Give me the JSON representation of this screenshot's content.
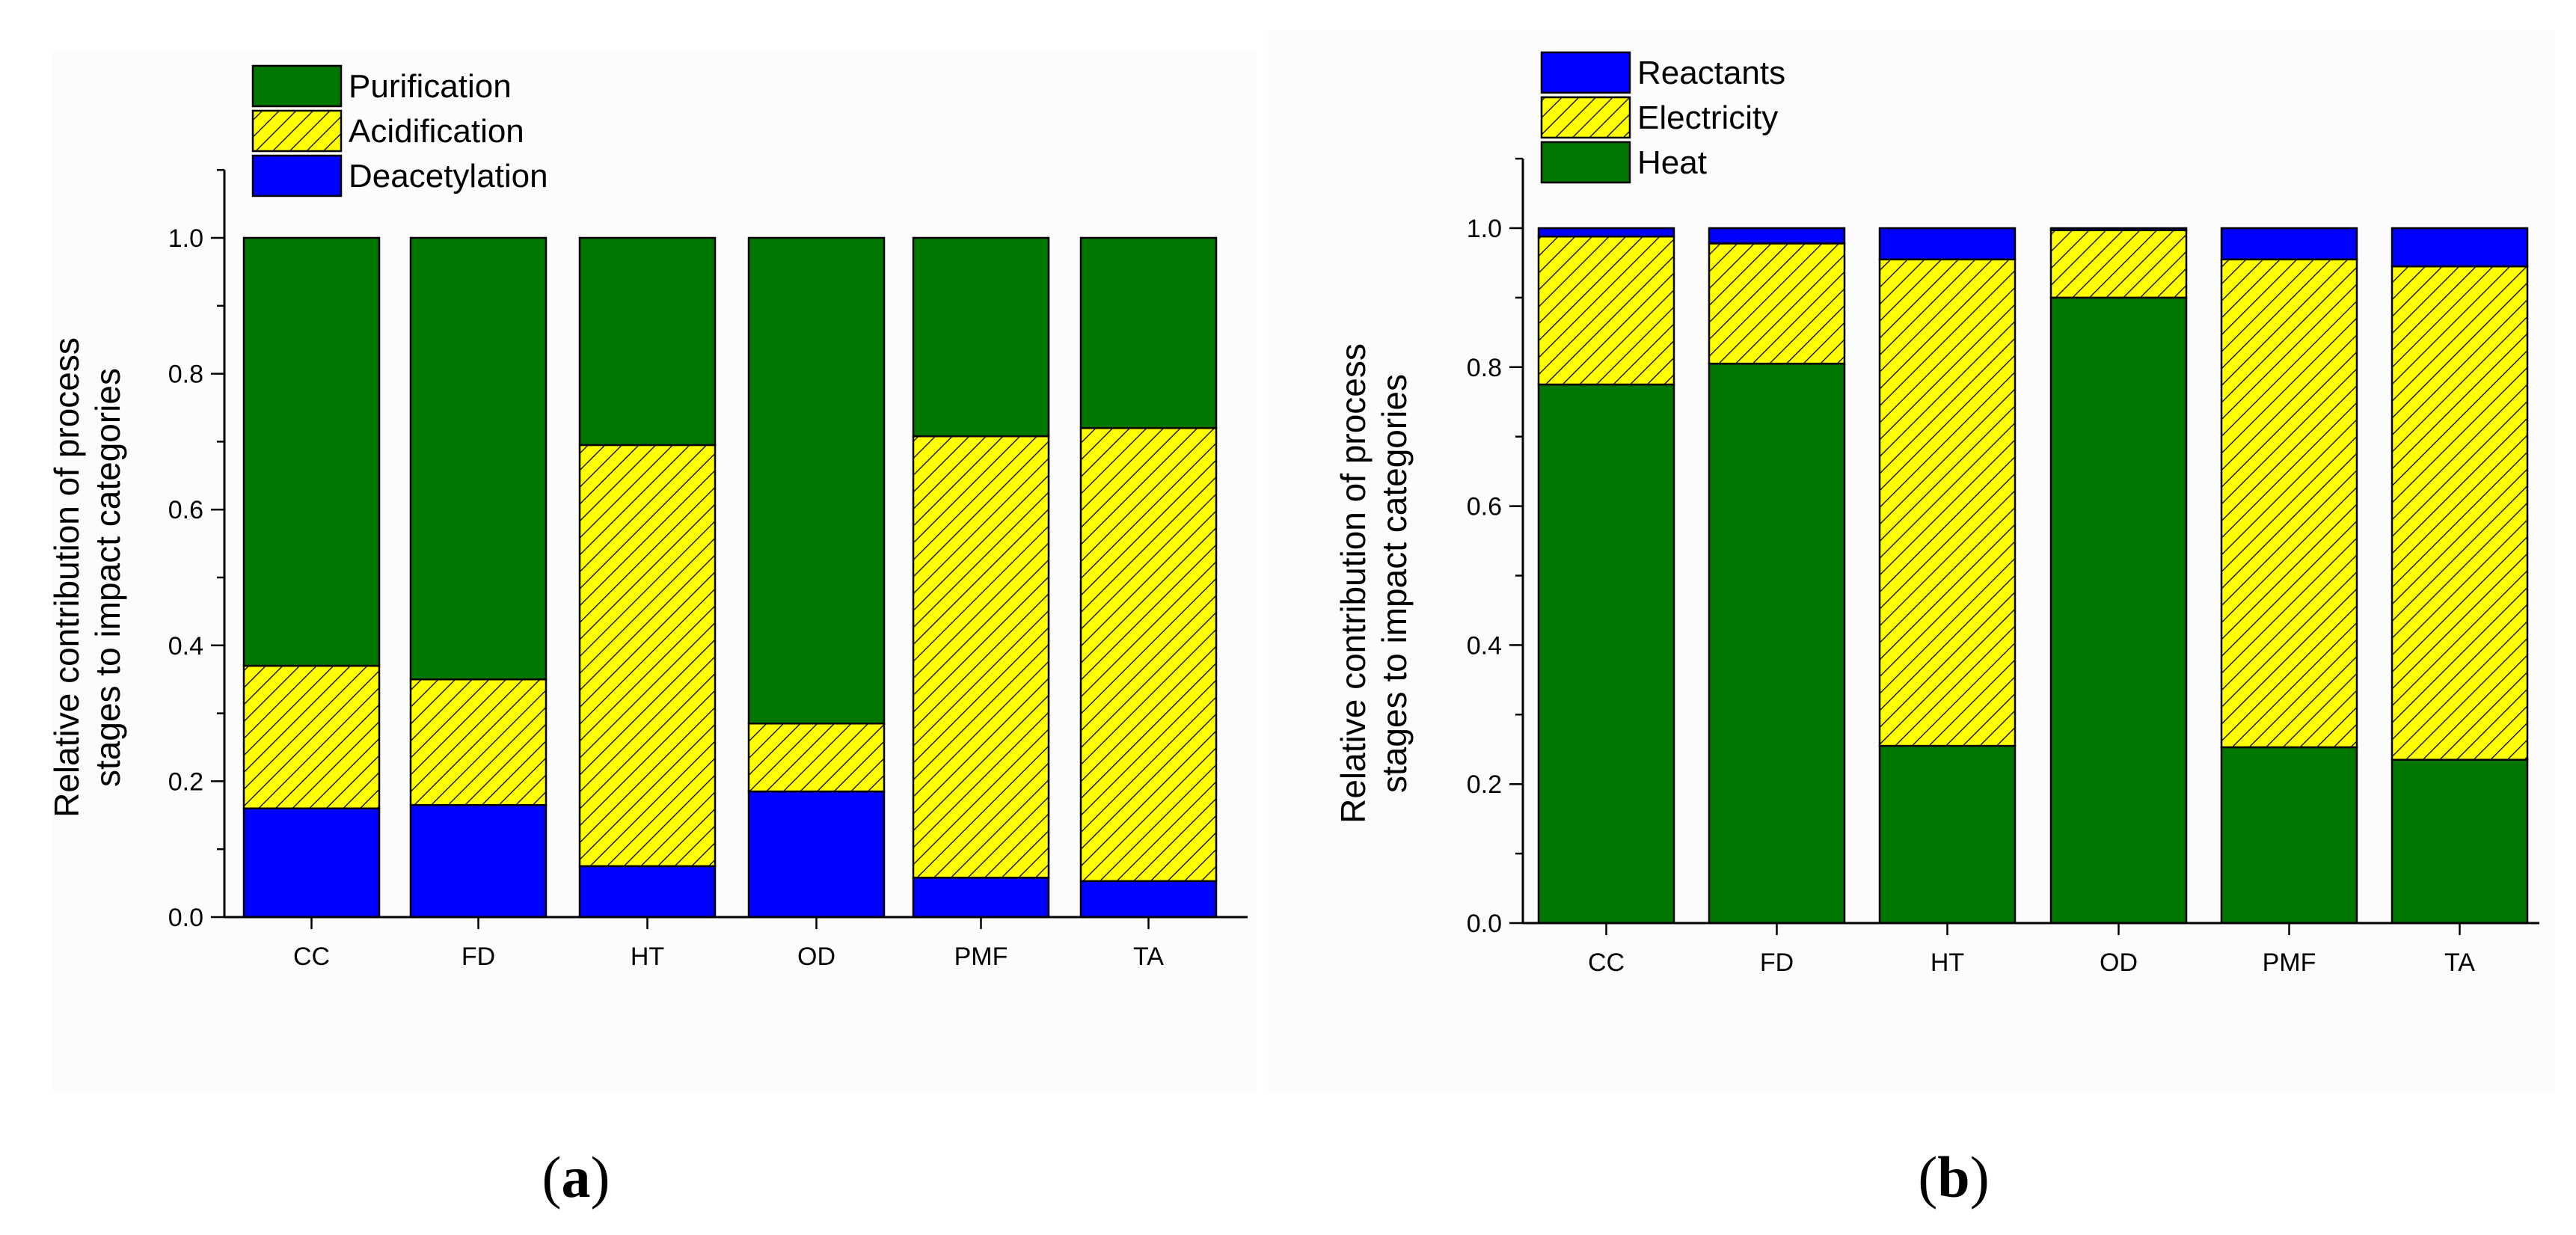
{
  "chart_data": [
    {
      "id": "a",
      "type": "bar",
      "stacked": true,
      "panel_label": "(a)",
      "panel_letter": "a",
      "title": "",
      "xlabel": "",
      "ylabel_lines": [
        "Relative contribution of process",
        "stages to impact categories"
      ],
      "ylim": [
        0,
        1.1
      ],
      "yticks": [
        "0.0",
        "0.2",
        "0.4",
        "0.6",
        "0.8",
        "1.0"
      ],
      "ytick_values": [
        0,
        0.2,
        0.4,
        0.6,
        0.8,
        1.0
      ],
      "grid": false,
      "legend_position": "top-left",
      "categories": [
        "CC",
        "FD",
        "HT",
        "OD",
        "PMF",
        "TA"
      ],
      "series": [
        {
          "name": "Deacetylation",
          "color": "#0000ff",
          "pattern": "solid",
          "values": [
            0.16,
            0.165,
            0.075,
            0.185,
            0.058,
            0.053
          ]
        },
        {
          "name": "Acidification",
          "color": "#ffff00",
          "pattern": "hatched",
          "values": [
            0.21,
            0.185,
            0.62,
            0.1,
            0.65,
            0.667
          ]
        },
        {
          "name": "Purification",
          "color": "#007700",
          "pattern": "solid",
          "values": [
            0.63,
            0.65,
            0.305,
            0.715,
            0.292,
            0.28
          ]
        }
      ],
      "legend_order": [
        "Purification",
        "Acidification",
        "Deacetylation"
      ]
    },
    {
      "id": "b",
      "type": "bar",
      "stacked": true,
      "panel_label": "(b)",
      "panel_letter": "b",
      "title": "",
      "xlabel": "",
      "ylabel_lines": [
        "Relative contribution of process",
        "stages to impact categories"
      ],
      "ylim": [
        0,
        1.1
      ],
      "yticks": [
        "0.0",
        "0.2",
        "0.4",
        "0.6",
        "0.8",
        "1.0"
      ],
      "ytick_values": [
        0,
        0.2,
        0.4,
        0.6,
        0.8,
        1.0
      ],
      "grid": false,
      "legend_position": "top-left",
      "categories": [
        "CC",
        "FD",
        "HT",
        "OD",
        "PMF",
        "TA"
      ],
      "series": [
        {
          "name": "Heat",
          "color": "#007700",
          "pattern": "solid",
          "values": [
            0.775,
            0.805,
            0.255,
            0.9,
            0.253,
            0.235
          ]
        },
        {
          "name": "Electricity",
          "color": "#ffff00",
          "pattern": "hatched",
          "values": [
            0.213,
            0.173,
            0.7,
            0.097,
            0.702,
            0.71
          ]
        },
        {
          "name": "Reactants",
          "color": "#0000ff",
          "pattern": "solid",
          "values": [
            0.012,
            0.022,
            0.045,
            0.003,
            0.045,
            0.055
          ]
        }
      ],
      "legend_order": [
        "Reactants",
        "Electricity",
        "Heat"
      ]
    }
  ]
}
